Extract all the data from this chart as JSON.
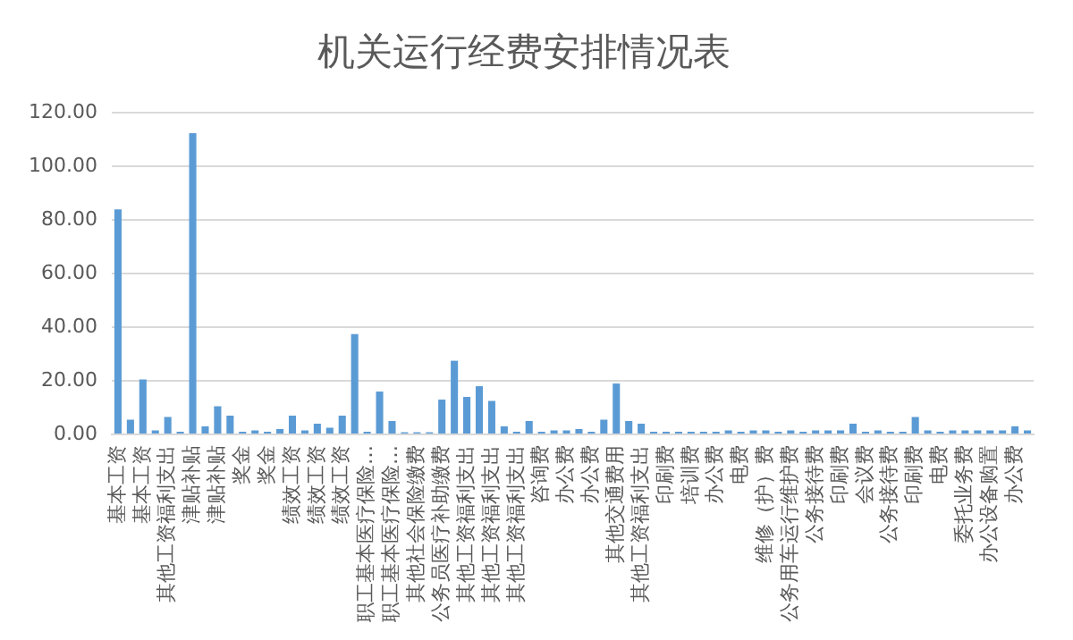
{
  "chart_data": {
    "type": "bar",
    "title": "机关运行经费安排情况表",
    "categories": [
      "基本工资",
      null,
      "基本工资",
      null,
      "其他工资福利支出",
      null,
      "津贴补贴",
      null,
      "津贴补贴",
      null,
      "奖金",
      null,
      "奖金",
      null,
      "绩效工资",
      null,
      "绩效工资",
      null,
      "绩效工资",
      null,
      "职工基本医疗保险…",
      null,
      "职工基本医疗保险…",
      null,
      "其他社会保险缴费",
      null,
      "公务员医疗补助缴费",
      null,
      "其他工资福利支出",
      null,
      "其他工资福利支出",
      null,
      "其他工资福利支出",
      null,
      "咨询费",
      null,
      "办公费",
      null,
      "办公费",
      null,
      "其他交通费用",
      null,
      "其他工资福利支出",
      null,
      "印刷费",
      null,
      "培训费",
      null,
      "办公费",
      null,
      "电费",
      null,
      "维修（护）费",
      null,
      "公务用车运行维护费",
      null,
      "公务接待费",
      null,
      "印刷费",
      null,
      "会议费",
      null,
      "公务接待费",
      null,
      "印刷费",
      null,
      "电费",
      null,
      "委托业务费",
      null,
      "办公设备购置",
      null,
      "办公费",
      null
    ],
    "values": [
      84,
      5.5,
      20.5,
      1.5,
      6.5,
      1,
      112.5,
      3,
      10.5,
      7,
      1,
      1.5,
      1,
      2,
      7,
      1.5,
      4,
      2.5,
      7,
      37.5,
      1,
      16,
      5,
      0.8,
      0.8,
      0.8,
      13,
      27.5,
      14,
      18,
      12.5,
      3,
      1,
      5,
      1,
      1.5,
      1.5,
      2,
      1,
      5.5,
      19,
      5,
      4,
      1,
      1,
      1,
      1,
      1,
      1,
      1.5,
      1,
      1.5,
      1.5,
      1,
      1.5,
      1,
      1.5,
      1.5,
      1.5,
      4,
      1,
      1.5,
      1,
      1,
      6.5,
      1.5,
      1,
      1.5,
      1.5,
      1.5,
      1.5,
      1.5,
      3,
      1.5
    ],
    "color": "#5b9bd5",
    "ylim": [
      0,
      120
    ],
    "yticks": [
      {
        "value": 0,
        "label": "0.00"
      },
      {
        "value": 20,
        "label": "20.00"
      },
      {
        "value": 40,
        "label": "40.00"
      },
      {
        "value": 60,
        "label": "60.00"
      },
      {
        "value": 80,
        "label": "80.00"
      },
      {
        "value": 100,
        "label": "100.00"
      },
      {
        "value": 120,
        "label": "120.00"
      }
    ],
    "grid": "y"
  }
}
